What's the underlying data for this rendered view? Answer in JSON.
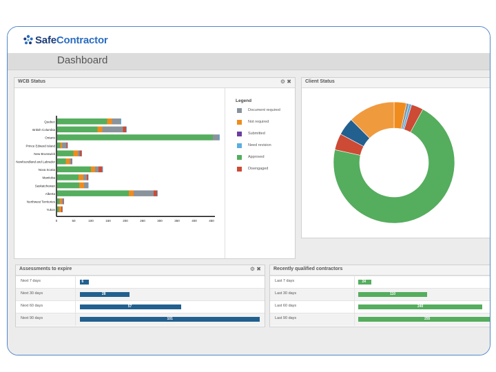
{
  "app": {
    "logo_part1": "Safe",
    "logo_part2": "Contractor",
    "page_title": "Dashboard"
  },
  "colors": {
    "document_required": "#8a939c",
    "not_required": "#ef8c1d",
    "submitted": "#6a3ea1",
    "need_revision": "#5aaee0",
    "approved": "#55ad5e",
    "disengaged": "#cd4a35",
    "tbar_blue": "#22608f",
    "tbar_green": "#55ad5e"
  },
  "wcb_panel": {
    "title": "WCB Status",
    "settings_icon": "gear-icon",
    "close_icon": "close-icon",
    "legend_title": "Legend",
    "legend": [
      {
        "label": "Document required",
        "color": "#8a939c"
      },
      {
        "label": "Not required",
        "color": "#ef8c1d"
      },
      {
        "label": "Submitted",
        "color": "#6a3ea1"
      },
      {
        "label": "Need revision",
        "color": "#5aaee0"
      },
      {
        "label": "Approved",
        "color": "#55ad5e"
      },
      {
        "label": "Disengaged",
        "color": "#cd4a35"
      }
    ]
  },
  "chart_data": [
    {
      "type": "bar",
      "orientation": "horizontal",
      "stacked": true,
      "categories": [
        "Quebec",
        "British Columbia",
        "Ontario",
        "Prince Edward Island",
        "New Brunswick",
        "Newfoundland and Labrador",
        "Nova Scotia",
        "Manitoba",
        "Saskatchewan",
        "Alberta",
        "Northwest Territories",
        "Yukon"
      ],
      "series": [
        {
          "name": "Approved",
          "color": "#55ad5e",
          "values": [
            145,
            117,
            452,
            9,
            47,
            25,
            98,
            62,
            64,
            208,
            7,
            5
          ]
        },
        {
          "name": "Not required",
          "color": "#ef8c1d",
          "values": [
            14,
            14,
            0,
            5,
            13,
            11,
            12,
            14,
            14,
            14,
            6,
            7
          ]
        },
        {
          "name": "Document required",
          "color": "#8a939c",
          "values": [
            25,
            60,
            18,
            13,
            5,
            5,
            10,
            10,
            12,
            58,
            4,
            0
          ]
        },
        {
          "name": "Disengaged",
          "color": "#cd4a35",
          "values": [
            0,
            9,
            0,
            3,
            6,
            2,
            11,
            4,
            0,
            10,
            2,
            3
          ]
        },
        {
          "name": "Need revision",
          "color": "#5aaee0",
          "values": [
            2,
            2,
            2,
            1,
            1,
            1,
            2,
            1,
            1,
            2,
            1,
            1
          ]
        }
      ],
      "xlim": [
        0,
        450
      ],
      "xticks": [
        "0",
        "50",
        "100",
        "150",
        "200",
        "250",
        "300",
        "350",
        "400",
        "450"
      ],
      "grid": false,
      "legend_position": "right"
    },
    {
      "type": "pie",
      "donut": true,
      "slices": [
        {
          "name": "Not required",
          "value": 3.3,
          "color": "#ef8c1d"
        },
        {
          "name": "Document required",
          "value": 0.7,
          "color": "#8a939c"
        },
        {
          "name": "Need revision",
          "value": 0.7,
          "color": "#5aaee0"
        },
        {
          "name": "Disengaged",
          "value": 3.2,
          "color": "#cd4a35"
        },
        {
          "name": "Approved",
          "value": 70.5,
          "color": "#55ad5e"
        },
        {
          "name": "Disengaged",
          "value": 4.4,
          "color": "#cd4a35"
        },
        {
          "name": "Submitted",
          "value": 4.7,
          "color": "#22608f"
        },
        {
          "name": "Not required",
          "value": 12.5,
          "color": "#f09a3e"
        }
      ]
    }
  ],
  "client_panel": {
    "title": "Client Status"
  },
  "expire_panel": {
    "title": "Assessments to expire",
    "settings_icon": "gear-icon",
    "close_icon": "close-icon",
    "rows": [
      {
        "label": "Next 7 days",
        "value": "6",
        "fraction": 0.05
      },
      {
        "label": "Next 30 days",
        "value": "28",
        "fraction": 0.275
      },
      {
        "label": "Next 60 days",
        "value": "57",
        "fraction": 0.565
      },
      {
        "label": "Next 90 days",
        "value": "101",
        "fraction": 1.0
      }
    ]
  },
  "recent_panel": {
    "title": "Recently qualified contractors",
    "rows": [
      {
        "label": "Last 7 days",
        "value": "24",
        "fraction": 0.095
      },
      {
        "label": "Last 30 days",
        "value": "110",
        "fraction": 0.5
      },
      {
        "label": "Last 60 days",
        "value": "240",
        "fraction": 0.9
      },
      {
        "label": "Last 90 days",
        "value": "255",
        "fraction": 1.0
      }
    ]
  }
}
